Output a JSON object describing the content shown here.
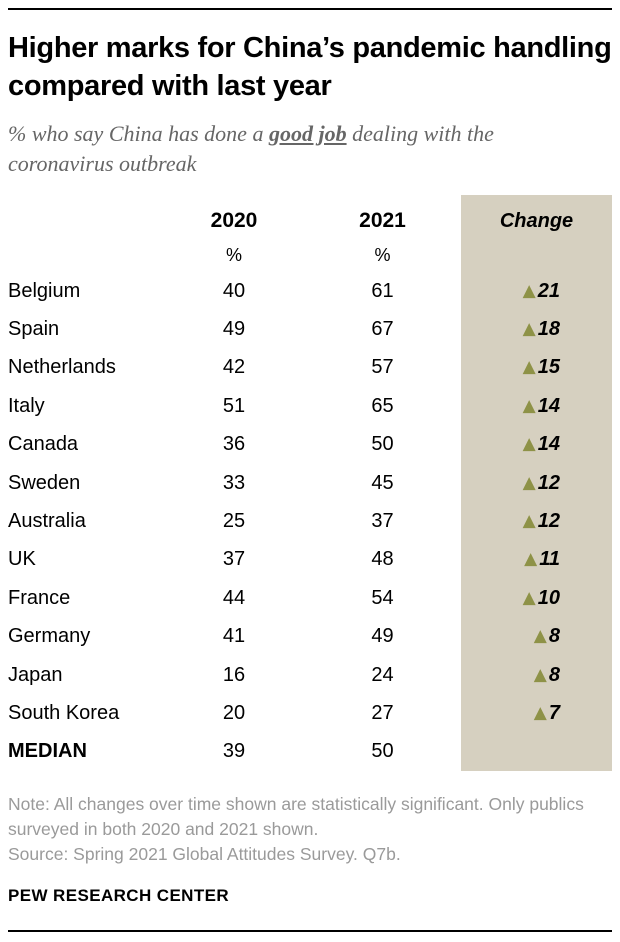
{
  "page": {
    "title": "Higher marks for China’s pandemic handling compared with last year",
    "subtitle": {
      "prefix": "% who say China has done a ",
      "emphasis": "good job",
      "suffix": " dealing with the coronavirus outbreak"
    }
  },
  "chart_data": {
    "type": "table",
    "title": "Higher marks for China’s pandemic handling compared with last year",
    "subtitle": "% who say China has done a good job dealing with the coronavirus outbreak",
    "columns": [
      "2020",
      "2021",
      "Change"
    ],
    "unit": "%",
    "change_direction": "increase",
    "grid": false,
    "legend_position": "none",
    "rows": [
      {
        "label": "Belgium",
        "y2020": 40,
        "y2021": 61,
        "change": 21,
        "bold": false
      },
      {
        "label": "Spain",
        "y2020": 49,
        "y2021": 67,
        "change": 18,
        "bold": false
      },
      {
        "label": "Netherlands",
        "y2020": 42,
        "y2021": 57,
        "change": 15,
        "bold": false
      },
      {
        "label": "Italy",
        "y2020": 51,
        "y2021": 65,
        "change": 14,
        "bold": false
      },
      {
        "label": "Canada",
        "y2020": 36,
        "y2021": 50,
        "change": 14,
        "bold": false
      },
      {
        "label": "Sweden",
        "y2020": 33,
        "y2021": 45,
        "change": 12,
        "bold": false
      },
      {
        "label": "Australia",
        "y2020": 25,
        "y2021": 37,
        "change": 12,
        "bold": false
      },
      {
        "label": "UK",
        "y2020": 37,
        "y2021": 48,
        "change": 11,
        "bold": false
      },
      {
        "label": "France",
        "y2020": 44,
        "y2021": 54,
        "change": 10,
        "bold": false
      },
      {
        "label": "Germany",
        "y2020": 41,
        "y2021": 49,
        "change": 8,
        "bold": false
      },
      {
        "label": "Japan",
        "y2020": 16,
        "y2021": 24,
        "change": 8,
        "bold": false
      },
      {
        "label": "South Korea",
        "y2020": 20,
        "y2021": 27,
        "change": 7,
        "bold": false
      },
      {
        "label": "MEDIAN",
        "y2020": 39,
        "y2021": 50,
        "change": null,
        "bold": true
      }
    ]
  },
  "footer": {
    "note": "Note: All changes over time shown are statistically significant. Only publics surveyed in both 2020 and 2021 shown.",
    "source": "Source: Spring 2021 Global Attitudes Survey. Q7b.",
    "brand": "PEW RESEARCH CENTER"
  },
  "colors": {
    "change_column_bg": "#d6d0c0",
    "increase_triangle": "#8e9247",
    "subtitle_text": "#666666",
    "note_text": "#9a9a9a",
    "text": "#000000"
  }
}
